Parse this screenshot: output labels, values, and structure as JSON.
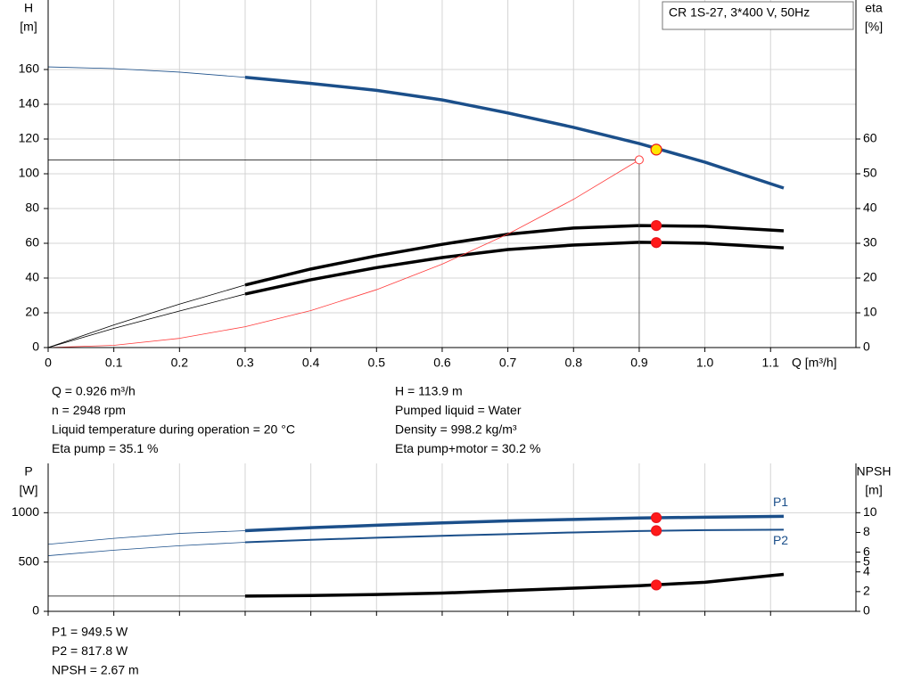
{
  "chart_data": [
    {
      "type": "line",
      "legend_box": "CR 1S-27, 3*400 V, 50Hz",
      "ylabel": "H",
      "yunit": "[m]",
      "y2label": "eta",
      "y2unit": "[%]",
      "xlabel": "Q [m³/h]",
      "xlim": [
        0,
        1.23
      ],
      "xticks": [
        0,
        0.1,
        0.2,
        0.3,
        0.4,
        0.5,
        0.6,
        0.7,
        0.8,
        0.9,
        {
          "value": 1,
          "label": "1.0"
        },
        1.1
      ],
      "ylim": [
        0,
        200
      ],
      "yticks": [
        0,
        20,
        40,
        60,
        80,
        100,
        120,
        140,
        160
      ],
      "y2lim": [
        0,
        100
      ],
      "y2ticks": [
        0,
        10,
        20,
        30,
        40,
        50,
        60
      ],
      "grid": true,
      "thin_below": 0.3,
      "operating_x": 0.926,
      "x": [
        0,
        0.1,
        0.2,
        0.3,
        0.4,
        0.5,
        0.6,
        0.7,
        0.8,
        0.9,
        1,
        1.12
      ],
      "series": [
        {
          "color": "#1b4f8a",
          "values": [
            161.5,
            160.5,
            158.5,
            155.5,
            152,
            148,
            142.5,
            135,
            126.7,
            117.4,
            106.7,
            91.8
          ],
          "operating_value": 113.9,
          "marker_color": "#ffe500"
        },
        {
          "color": "#000000",
          "axis": "y2",
          "values": [
            0,
            6.5,
            12.5,
            18,
            22.6,
            26.4,
            29.7,
            32.6,
            34.4,
            35.1,
            34.9,
            33.6
          ],
          "operating_value": 35.1,
          "marker_color": "#ff1a1a"
        },
        {
          "color": "#000000",
          "axis": "y2",
          "values": [
            0,
            5.5,
            10.5,
            15.4,
            19.5,
            23,
            25.9,
            28.2,
            29.5,
            30.3,
            30,
            28.7
          ],
          "operating_value": 30.2,
          "marker_color": "#ff1a1a"
        },
        {
          "color": "#ff3b3b",
          "style": "thin",
          "duty_guides": true,
          "values": [
            0,
            1.3,
            5.3,
            12,
            21.3,
            33.3,
            48,
            65.3,
            85.3,
            108,
            null,
            null
          ]
        }
      ],
      "info_left": [
        "Q = 0.926 m³/h",
        "n = 2948 rpm",
        "Liquid temperature during operation = 20 °C",
        "Eta pump = 35.1 %"
      ],
      "info_right": [
        "H = 113.9 m",
        "Pumped liquid = Water",
        "Density = 998.2 kg/m³",
        "Eta pump+motor = 30.2 %"
      ]
    },
    {
      "type": "line",
      "ylabel": "P",
      "yunit": "[W]",
      "y2label": "NPSH",
      "y2unit": "[m]",
      "xlim": [
        0,
        1.23
      ],
      "xticks": [
        0,
        0.1,
        0.2,
        0.3,
        0.4,
        0.5,
        0.6,
        0.7,
        0.8,
        0.9,
        1,
        1.1
      ],
      "show_xtick_labels": false,
      "ylim": [
        0,
        1500
      ],
      "yticks": [
        0,
        500,
        1000
      ],
      "y2lim": [
        0,
        15
      ],
      "y2ticks": [
        0,
        2,
        4,
        5,
        6,
        8,
        10
      ],
      "grid": true,
      "thin_below": 0.3,
      "operating_x": 0.926,
      "x": [
        0,
        0.1,
        0.2,
        0.3,
        0.4,
        0.5,
        0.6,
        0.7,
        0.8,
        0.9,
        1,
        1.12
      ],
      "series": [
        {
          "name": "P1",
          "color": "#1b4f8a",
          "values": [
            680,
            740,
            790,
            818,
            848,
            873,
            897,
            917,
            932,
            946,
            955,
            963
          ],
          "operating_value": 949.5,
          "marker_color": "#ff1a1a"
        },
        {
          "name": "P2",
          "color": "#1b4f8a",
          "style": "medium",
          "values": [
            564,
            620,
            665,
            700,
            725,
            747,
            766,
            783,
            800,
            814,
            823,
            828
          ],
          "operating_value": 817.8,
          "marker_color": "#ff1a1a"
        },
        {
          "color": "#000000",
          "axis": "y2",
          "values": [
            1.55,
            1.55,
            1.55,
            1.55,
            1.6,
            1.7,
            1.85,
            2.1,
            2.35,
            2.6,
            2.95,
            3.75
          ],
          "operating_value": 2.67,
          "marker_color": "#ff1a1a"
        }
      ],
      "info_left": [
        "P1 = 949.5 W",
        "P2 = 817.8 W",
        "NPSH = 2.67 m"
      ]
    }
  ]
}
